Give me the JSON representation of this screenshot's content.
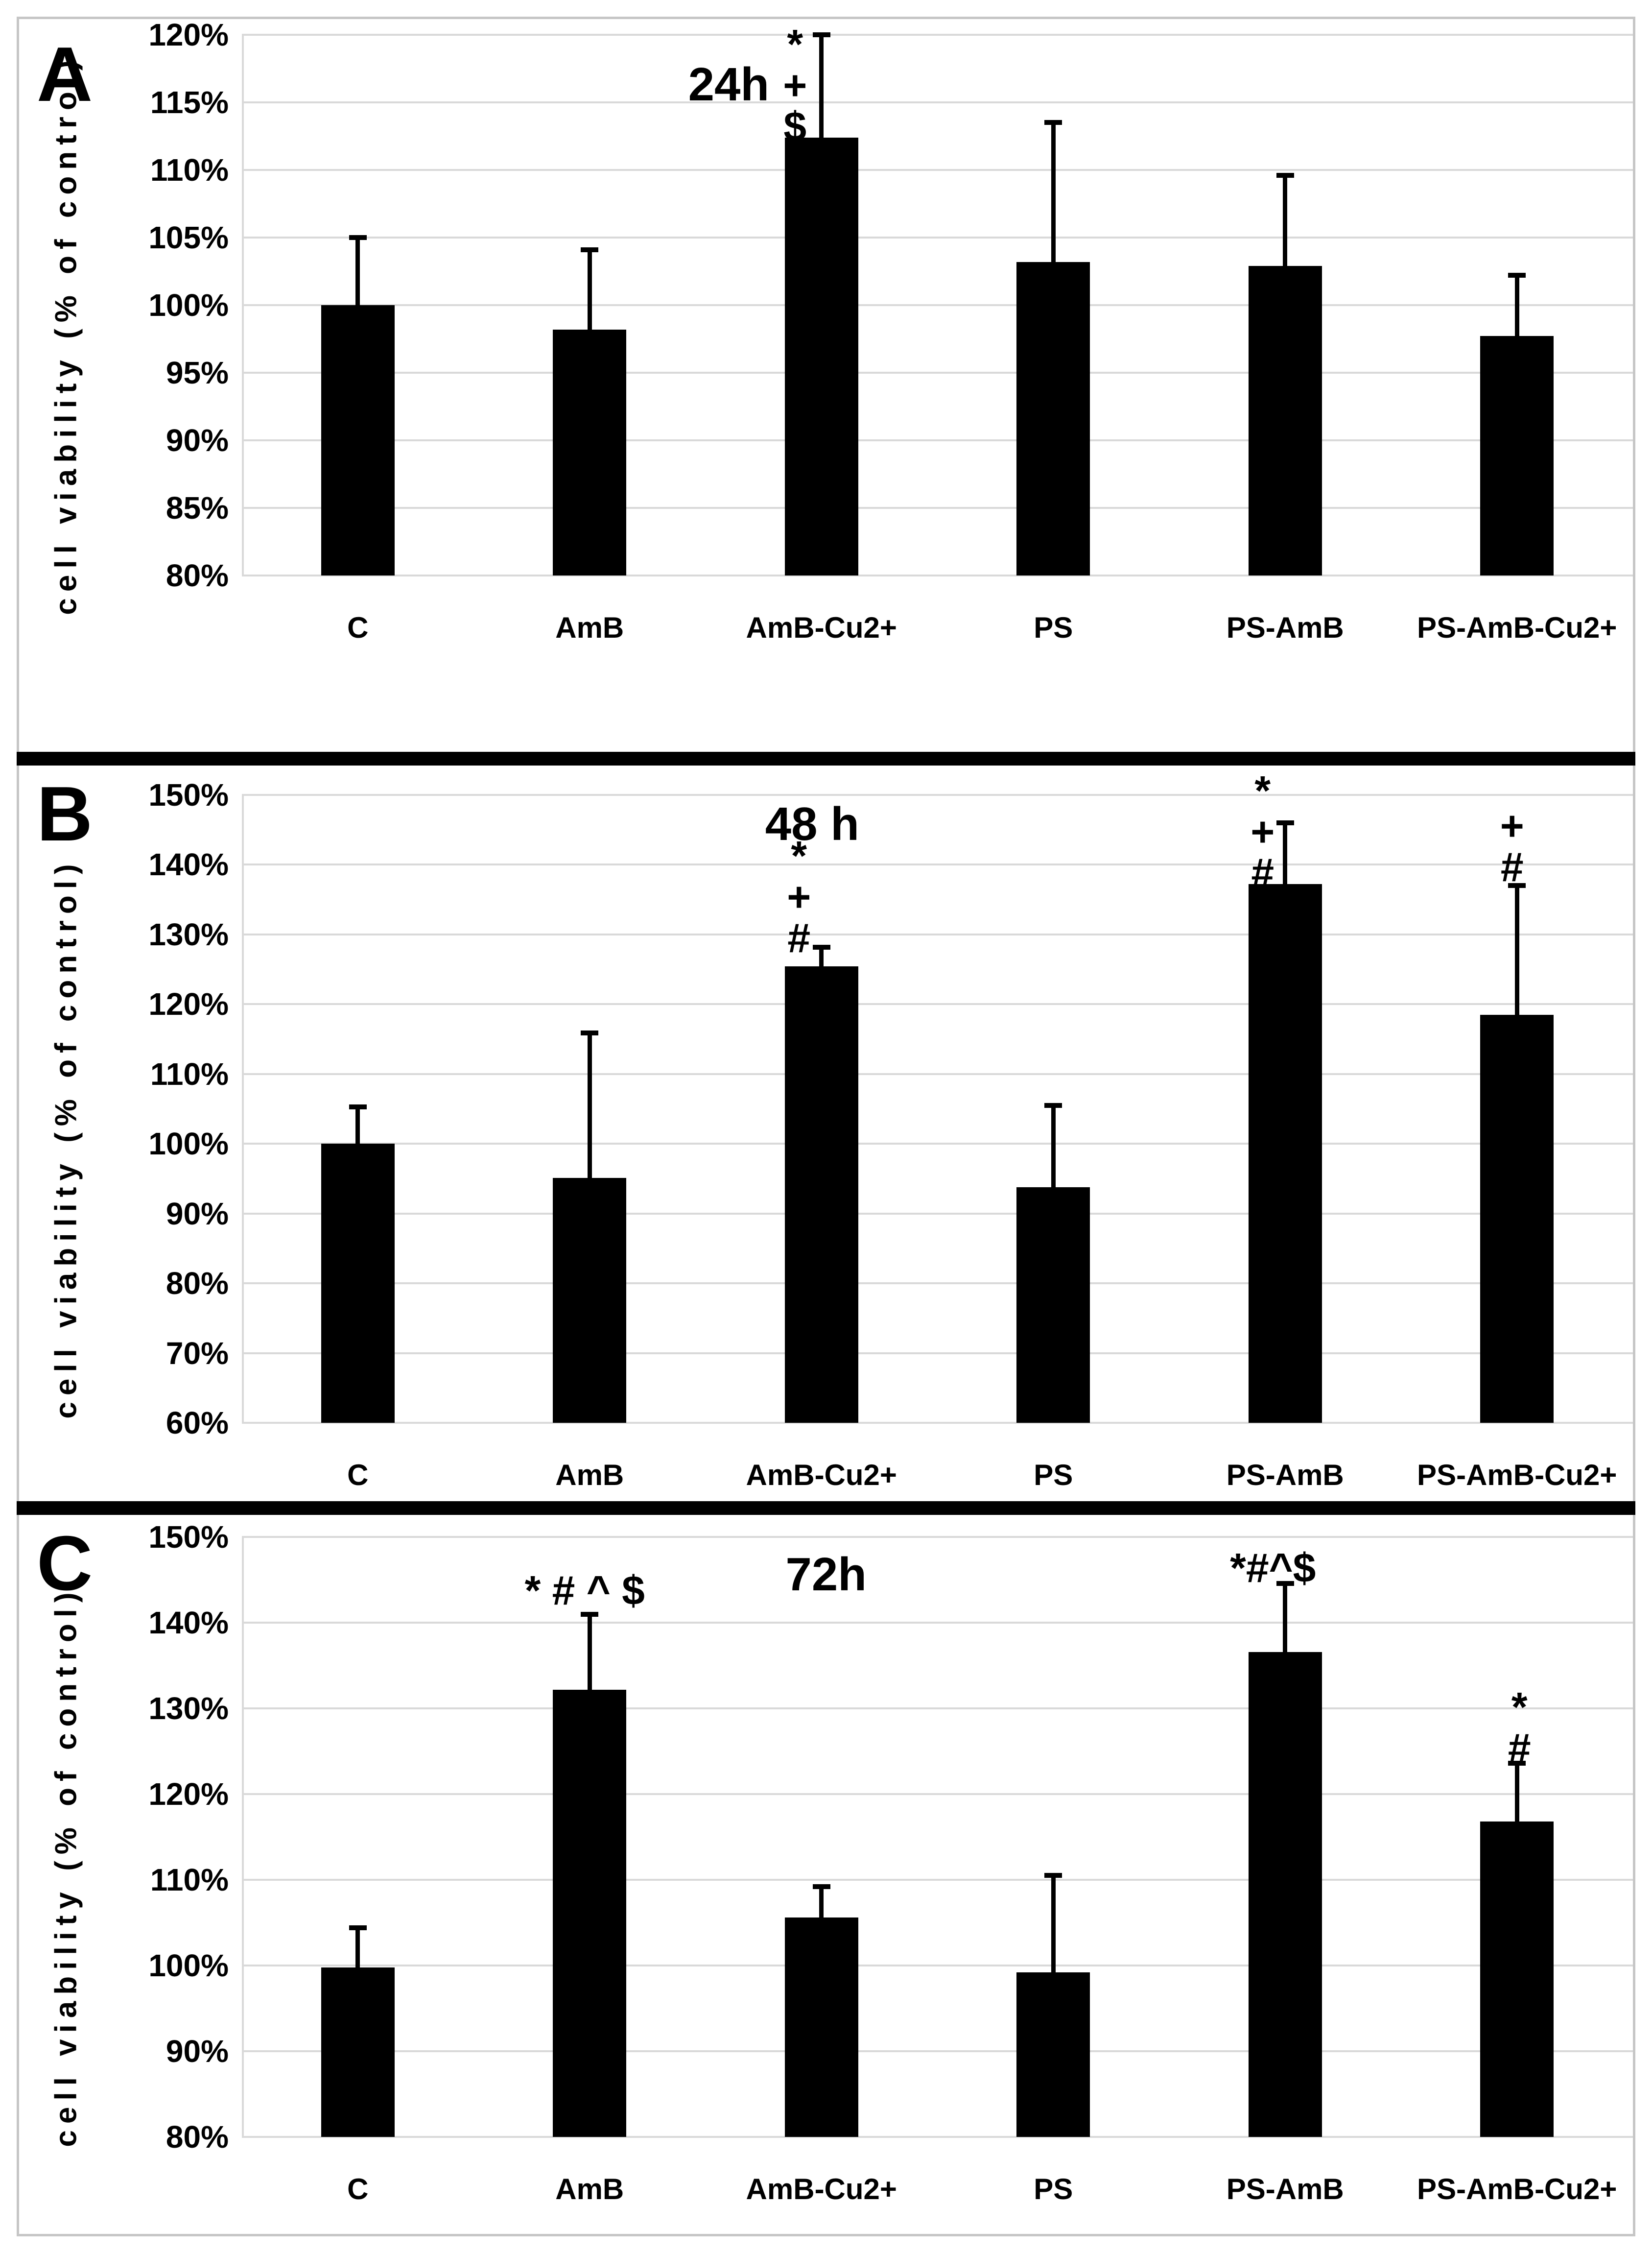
{
  "figure": {
    "background_color": "#ffffff",
    "outer_border_color": "#c6c6c6",
    "separator_color": "#000000",
    "bar_color": "#000000",
    "gridline_color": "#d9d9d9",
    "y_axis_label": "cell viability  (% of control)",
    "tick_suffix": "%"
  },
  "chart_data": [
    {
      "type": "bar",
      "panel_letter": "A",
      "title": "24h",
      "ylabel": "cell viability  (% of control)",
      "categories": [
        "C",
        "AmB",
        "AmB-Cu2+",
        "PS",
        "PS-AmB",
        "PS-AmB-Cu2+"
      ],
      "values": [
        100.0,
        98.2,
        112.4,
        103.2,
        102.9,
        97.7
      ],
      "error_top": [
        105.0,
        104.1,
        120.0,
        113.5,
        109.6,
        102.2
      ],
      "ylim": [
        80,
        120
      ],
      "ytick_step": 5,
      "grid": true,
      "legend": "none",
      "title_pos": {
        "x_frac": 0.35,
        "y_value": 116.3
      },
      "annotations": [
        {
          "category": "AmB-Cu2+",
          "lines": [
            "*",
            "+",
            "$"
          ],
          "y_top_value": 119.3,
          "dx": -54
        }
      ]
    },
    {
      "type": "bar",
      "panel_letter": "B",
      "title": "48 h",
      "ylabel": "cell viability  (% of control)",
      "categories": [
        "C",
        "AmB",
        "AmB-Cu2+",
        "PS",
        "PS-AmB",
        "PS-AmB-Cu2+"
      ],
      "values": [
        100.0,
        95.1,
        125.4,
        93.8,
        137.2,
        118.5
      ],
      "error_top": [
        105.3,
        115.9,
        128.2,
        105.5,
        146.0,
        137.0
      ],
      "ylim": [
        60,
        150
      ],
      "ytick_step": 10,
      "grid": true,
      "legend": "none",
      "title_pos": {
        "x_frac": 0.41,
        "y_value": 145.8
      },
      "annotations": [
        {
          "category": "AmB-Cu2+",
          "lines": [
            "*",
            "+",
            "#"
          ],
          "y_top_value": 141.3,
          "dx": -46
        },
        {
          "category": "PS-AmB",
          "lines": [
            "*",
            "+",
            "#"
          ],
          "y_top_value": 150.6,
          "dx": -46
        },
        {
          "category": "PS-AmB-Cu2+",
          "lines": [
            "+",
            "#"
          ],
          "y_top_value": 145.6,
          "dx": -10
        }
      ]
    },
    {
      "type": "bar",
      "panel_letter": "C",
      "title": "72h",
      "ylabel": "cell viability  (% of control)",
      "categories": [
        "C",
        "AmB",
        "AmB-Cu2+",
        "PS",
        "PS-AmB",
        "PS-AmB-Cu2+"
      ],
      "values": [
        99.8,
        132.2,
        105.6,
        99.2,
        136.6,
        116.8
      ],
      "error_top": [
        104.4,
        141.0,
        109.2,
        110.5,
        144.6,
        123.6
      ],
      "ylim": [
        80,
        150
      ],
      "ytick_step": 10,
      "grid": true,
      "legend": "none",
      "title_pos": {
        "x_frac": 0.42,
        "y_value": 145.6
      },
      "annotations": [
        {
          "category": "AmB",
          "lines": [
            "* # ^ $"
          ],
          "y_top_value": 143.8,
          "dx": -10
        },
        {
          "category": "PS-AmB",
          "lines": [
            "*#^$"
          ],
          "y_top_value": 146.4,
          "dx": -25
        },
        {
          "category": "PS-AmB-Cu2+",
          "lines": [
            "*",
            "#"
          ],
          "y_top_value": 130.2,
          "dx": 5
        }
      ]
    }
  ]
}
